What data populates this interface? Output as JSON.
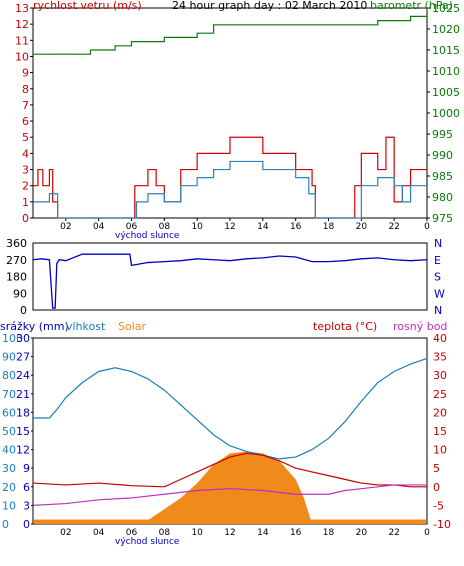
{
  "page": {
    "title": "24 hour graph day : 02 March 2010"
  },
  "colors": {
    "wind": "#d00000",
    "wind_avg": "#2a84b8",
    "baro": "#0a7a0a",
    "dir": "#0000c0",
    "humidity": "#1a7ec0",
    "temp": "#c00000",
    "dew": "#c030c0",
    "solar": "#f08a1a",
    "rain": "#0000c0"
  },
  "chart_data": [
    {
      "type": "line",
      "title": "24 hour graph day : 02 March 2010",
      "left_axis_label": "rychlost vetru (m/s)",
      "right_axis_label": "barometr (hPa)",
      "x_ticks": [
        "02",
        "04",
        "06",
        "08",
        "10",
        "12",
        "14",
        "16",
        "18",
        "20",
        "22",
        "0"
      ],
      "x_note": "východ slunce",
      "left_ylim": [
        0,
        13
      ],
      "left_ticks": [
        "0",
        "1",
        "2",
        "3",
        "4",
        "5",
        "6",
        "7",
        "8",
        "9",
        "10",
        "11",
        "12",
        "13"
      ],
      "right_ylim": [
        975,
        1025
      ],
      "right_ticks": [
        "975",
        "980",
        "985",
        "990",
        "995",
        "1000",
        "1005",
        "1010",
        "1015",
        "1020",
        "1025"
      ],
      "series": [
        {
          "color_key": "baro",
          "x": [
            0,
            2,
            3.5,
            5,
            6,
            8,
            10,
            11,
            13,
            16,
            18,
            21,
            23,
            24
          ],
          "y": [
            1014,
            1014,
            1015,
            1016,
            1017,
            1018,
            1019,
            1021,
            1021,
            1021,
            1021,
            1022,
            1023,
            1023
          ]
        },
        {
          "color_key": "wind",
          "x": [
            0,
            0.3,
            0.6,
            1,
            1.2,
            1.5,
            5.8,
            6.2,
            7,
            7.5,
            8,
            9,
            10,
            11,
            12,
            13,
            14,
            15,
            16,
            16.5,
            17,
            17.2,
            17.6,
            18,
            19,
            19.6,
            20,
            21,
            21.5,
            22,
            22.5,
            23,
            23.3,
            23.7,
            24
          ],
          "y": [
            2,
            3,
            2,
            3,
            1,
            0,
            0,
            2,
            3,
            2,
            1,
            3,
            4,
            4,
            5,
            5,
            4,
            4,
            3,
            3,
            2,
            0,
            0,
            0,
            0,
            2,
            4,
            3,
            5,
            1,
            2,
            3,
            3,
            3,
            3
          ]
        },
        {
          "color_key": "wind_avg",
          "x": [
            0,
            1,
            1.5,
            5.8,
            6.3,
            7,
            8,
            9,
            10,
            11,
            12,
            13,
            14,
            15,
            16,
            16.8,
            17.2,
            18,
            19.5,
            20,
            21,
            22,
            22.5,
            23,
            24
          ],
          "y": [
            1,
            1.5,
            0,
            0,
            1,
            1.5,
            1,
            2,
            2.5,
            3,
            3.5,
            3.5,
            3,
            3,
            2.5,
            1.5,
            0,
            0,
            0,
            2,
            2.5,
            2,
            1,
            2,
            2
          ]
        }
      ]
    },
    {
      "type": "line",
      "left_ticks": [
        "0",
        "90",
        "180",
        "270",
        "360"
      ],
      "right_labels": [
        "N",
        "W",
        "S",
        "E",
        "N"
      ],
      "ylim": [
        0,
        360
      ],
      "series": [
        {
          "color_key": "dir",
          "x": [
            0,
            0.5,
            1,
            1.2,
            1.35,
            1.45,
            1.6,
            2,
            3,
            4,
            5,
            5.9,
            6,
            7,
            8,
            9,
            10,
            11,
            12,
            13,
            14,
            15,
            16,
            17,
            18,
            19,
            20,
            21,
            22,
            23,
            24
          ],
          "y": [
            270,
            275,
            270,
            10,
            10,
            250,
            270,
            265,
            300,
            300,
            300,
            300,
            240,
            255,
            260,
            265,
            275,
            270,
            265,
            275,
            280,
            290,
            285,
            260,
            260,
            265,
            275,
            280,
            270,
            265,
            270
          ]
        }
      ]
    },
    {
      "type": "line",
      "labels": {
        "rain": "srážky (mm)",
        "humidity": "vlhkost",
        "solar": "Solar",
        "temp": "teplota (°C)",
        "dew": "rosný bod"
      },
      "x_ticks": [
        "02",
        "04",
        "06",
        "08",
        "10",
        "12",
        "14",
        "16",
        "18",
        "20",
        "22",
        "0"
      ],
      "x_note": "východ slunce",
      "ticks_rain": [
        "0",
        "3",
        "6",
        "9",
        "12",
        "15",
        "18",
        "21",
        "24",
        "27",
        "30"
      ],
      "ticks_humidity": [
        "0",
        "10",
        "20",
        "30",
        "40",
        "50",
        "60",
        "70",
        "80",
        "90",
        "100"
      ],
      "ticks_temp": [
        "-10",
        "-5",
        "0",
        "5",
        "10",
        "15",
        "20",
        "25",
        "30",
        "35",
        "40"
      ],
      "temp_ylim": [
        -10,
        40
      ],
      "humidity_ylim": [
        0,
        100
      ],
      "series": [
        {
          "name": "vlhkost",
          "color_key": "humidity",
          "x": [
            0,
            1,
            1.5,
            2,
            3,
            4,
            5,
            5.5,
            6,
            7,
            8,
            9,
            10,
            11,
            12,
            13,
            14,
            15,
            16,
            17,
            18,
            19,
            20,
            21,
            22,
            23,
            24
          ],
          "y": [
            57,
            57,
            62,
            68,
            76,
            82,
            84,
            83,
            82,
            78,
            72,
            64,
            56,
            48,
            42,
            39,
            37,
            35,
            36,
            40,
            46,
            55,
            66,
            76,
            82,
            86,
            89
          ]
        },
        {
          "name": "teplota (°C)",
          "color_key": "temp",
          "x": [
            0,
            2,
            4,
            6,
            8,
            9,
            10,
            11,
            12,
            13,
            14,
            15,
            16,
            17,
            18,
            19,
            20,
            21,
            22,
            23,
            24
          ],
          "y": [
            1,
            0.5,
            1,
            0.3,
            0,
            2,
            4,
            6,
            8,
            9,
            8.5,
            7,
            5,
            4,
            3,
            2,
            1,
            0.5,
            0.5,
            0,
            0
          ]
        },
        {
          "name": "rosný bod",
          "color_key": "dew",
          "x": [
            0,
            2,
            4,
            6,
            8,
            10,
            12,
            14,
            16,
            18,
            19,
            20,
            21,
            22,
            23,
            24
          ],
          "y": [
            -5,
            -4.5,
            -3.5,
            -3,
            -2,
            -1,
            -0.5,
            -1,
            -2,
            -2,
            -1,
            -0.5,
            0,
            0.5,
            0.5,
            0.5
          ]
        },
        {
          "name": "Solar",
          "color_key": "solar",
          "x": [
            6.5,
            7,
            8,
            9,
            10,
            11,
            12,
            13,
            14,
            15,
            16,
            16.5,
            17
          ],
          "y": [
            -10,
            -9,
            -6,
            -3,
            1,
            6,
            9,
            9.5,
            9,
            7,
            2,
            -3,
            -10
          ]
        }
      ],
      "rain_bar_h": 0.6
    }
  ]
}
